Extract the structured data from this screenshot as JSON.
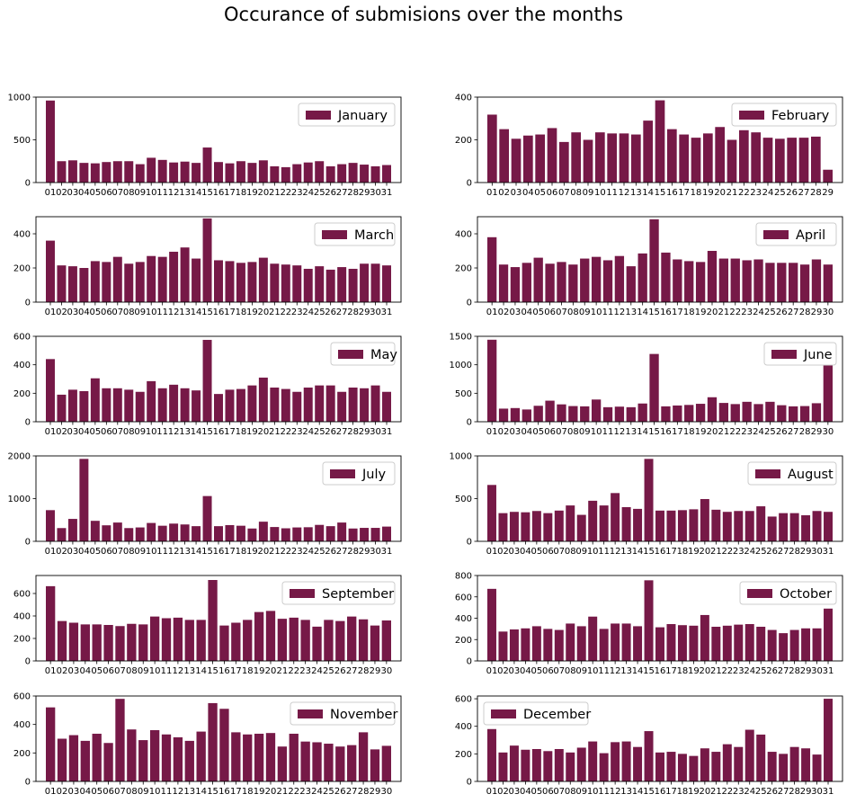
{
  "title": "Occurance of submisions over the months",
  "colors": {
    "bar": "#761947",
    "axis": "#000000"
  },
  "chart_data": [
    {
      "type": "bar",
      "name": "January",
      "legend_loc": "upper right",
      "ylim": [
        0,
        1000
      ],
      "yticks": [
        0,
        500,
        1000
      ],
      "categories": [
        "01",
        "02",
        "03",
        "04",
        "05",
        "06",
        "07",
        "08",
        "09",
        "10",
        "11",
        "12",
        "13",
        "14",
        "15",
        "16",
        "17",
        "18",
        "19",
        "20",
        "21",
        "22",
        "23",
        "24",
        "25",
        "26",
        "27",
        "28",
        "29",
        "30",
        "31"
      ],
      "values": [
        960,
        250,
        260,
        230,
        225,
        240,
        250,
        250,
        215,
        290,
        265,
        235,
        245,
        230,
        410,
        240,
        225,
        250,
        230,
        260,
        190,
        180,
        215,
        235,
        250,
        190,
        215,
        230,
        210,
        190,
        205
      ]
    },
    {
      "type": "bar",
      "name": "February",
      "legend_loc": "upper right",
      "ylim": [
        0,
        400
      ],
      "yticks": [
        0,
        200,
        400
      ],
      "categories": [
        "01",
        "02",
        "03",
        "04",
        "05",
        "06",
        "07",
        "08",
        "09",
        "10",
        "11",
        "12",
        "13",
        "14",
        "15",
        "16",
        "17",
        "18",
        "19",
        "20",
        "21",
        "22",
        "23",
        "24",
        "25",
        "26",
        "27",
        "28",
        "29"
      ],
      "values": [
        318,
        250,
        205,
        220,
        225,
        255,
        190,
        235,
        200,
        235,
        230,
        230,
        225,
        290,
        385,
        250,
        225,
        210,
        230,
        260,
        200,
        245,
        235,
        210,
        205,
        210,
        210,
        215,
        60
      ]
    },
    {
      "type": "bar",
      "name": "March",
      "legend_loc": "upper right",
      "ylim": [
        0,
        500
      ],
      "yticks": [
        0,
        200,
        400
      ],
      "categories": [
        "01",
        "02",
        "03",
        "04",
        "05",
        "06",
        "07",
        "08",
        "09",
        "10",
        "11",
        "12",
        "13",
        "14",
        "15",
        "16",
        "17",
        "18",
        "19",
        "20",
        "21",
        "22",
        "23",
        "24",
        "25",
        "26",
        "27",
        "28",
        "29",
        "30",
        "31"
      ],
      "values": [
        360,
        215,
        210,
        200,
        240,
        235,
        265,
        225,
        235,
        270,
        265,
        295,
        320,
        255,
        490,
        245,
        240,
        230,
        235,
        260,
        225,
        220,
        215,
        195,
        210,
        190,
        205,
        195,
        225,
        225,
        215
      ]
    },
    {
      "type": "bar",
      "name": "April",
      "legend_loc": "upper right",
      "ylim": [
        0,
        500
      ],
      "yticks": [
        0,
        200,
        400
      ],
      "categories": [
        "01",
        "02",
        "03",
        "04",
        "05",
        "06",
        "07",
        "08",
        "09",
        "10",
        "11",
        "12",
        "13",
        "14",
        "15",
        "16",
        "17",
        "18",
        "19",
        "20",
        "21",
        "22",
        "23",
        "24",
        "25",
        "26",
        "27",
        "28",
        "29",
        "30"
      ],
      "values": [
        380,
        220,
        205,
        230,
        260,
        225,
        235,
        220,
        255,
        265,
        245,
        270,
        210,
        285,
        485,
        290,
        250,
        240,
        235,
        300,
        255,
        255,
        245,
        250,
        230,
        230,
        230,
        220,
        250,
        220
      ]
    },
    {
      "type": "bar",
      "name": "May",
      "legend_loc": "upper right",
      "ylim": [
        0,
        600
      ],
      "yticks": [
        0,
        200,
        400,
        600
      ],
      "categories": [
        "01",
        "02",
        "03",
        "04",
        "05",
        "06",
        "07",
        "08",
        "09",
        "10",
        "11",
        "12",
        "13",
        "14",
        "15",
        "16",
        "17",
        "18",
        "19",
        "20",
        "21",
        "22",
        "23",
        "24",
        "25",
        "26",
        "27",
        "28",
        "29",
        "30",
        "31"
      ],
      "values": [
        440,
        190,
        225,
        215,
        305,
        235,
        235,
        225,
        210,
        285,
        235,
        260,
        235,
        220,
        575,
        195,
        225,
        230,
        255,
        310,
        240,
        230,
        210,
        240,
        255,
        255,
        210,
        240,
        235,
        255,
        210
      ]
    },
    {
      "type": "bar",
      "name": "June",
      "legend_loc": "upper right",
      "ylim": [
        0,
        1500
      ],
      "yticks": [
        0,
        500,
        1000,
        1500
      ],
      "categories": [
        "01",
        "02",
        "03",
        "04",
        "05",
        "06",
        "07",
        "08",
        "09",
        "10",
        "11",
        "12",
        "13",
        "14",
        "15",
        "16",
        "17",
        "18",
        "19",
        "20",
        "21",
        "22",
        "23",
        "24",
        "25",
        "26",
        "27",
        "28",
        "29",
        "30"
      ],
      "values": [
        1440,
        230,
        240,
        215,
        280,
        370,
        305,
        275,
        270,
        390,
        255,
        265,
        255,
        320,
        1190,
        270,
        285,
        295,
        315,
        430,
        330,
        310,
        350,
        310,
        350,
        290,
        270,
        275,
        325,
        1000
      ]
    },
    {
      "type": "bar",
      "name": "July",
      "legend_loc": "upper right",
      "ylim": [
        0,
        2000
      ],
      "yticks": [
        0,
        1000,
        2000
      ],
      "categories": [
        "01",
        "02",
        "03",
        "04",
        "05",
        "06",
        "07",
        "08",
        "09",
        "10",
        "11",
        "12",
        "13",
        "14",
        "15",
        "16",
        "17",
        "18",
        "19",
        "20",
        "21",
        "22",
        "23",
        "24",
        "25",
        "26",
        "27",
        "28",
        "29",
        "30",
        "31"
      ],
      "values": [
        730,
        310,
        525,
        1930,
        480,
        375,
        440,
        310,
        325,
        430,
        365,
        415,
        395,
        355,
        1060,
        355,
        380,
        365,
        300,
        460,
        335,
        305,
        325,
        330,
        385,
        355,
        440,
        300,
        315,
        315,
        345
      ]
    },
    {
      "type": "bar",
      "name": "August",
      "legend_loc": "upper right",
      "ylim": [
        0,
        1000
      ],
      "yticks": [
        0,
        500,
        1000
      ],
      "categories": [
        "01",
        "02",
        "03",
        "04",
        "05",
        "06",
        "07",
        "08",
        "09",
        "10",
        "11",
        "12",
        "13",
        "14",
        "15",
        "16",
        "17",
        "18",
        "19",
        "20",
        "21",
        "22",
        "23",
        "24",
        "25",
        "26",
        "27",
        "28",
        "29",
        "30",
        "31"
      ],
      "values": [
        660,
        330,
        345,
        340,
        355,
        330,
        360,
        420,
        310,
        475,
        420,
        565,
        400,
        380,
        965,
        360,
        360,
        365,
        375,
        495,
        370,
        345,
        355,
        355,
        410,
        290,
        330,
        330,
        305,
        355,
        345
      ]
    },
    {
      "type": "bar",
      "name": "September",
      "legend_loc": "upper right",
      "ylim": [
        0,
        760
      ],
      "yticks": [
        0,
        200,
        400,
        600
      ],
      "categories": [
        "01",
        "02",
        "03",
        "04",
        "05",
        "06",
        "07",
        "08",
        "09",
        "10",
        "11",
        "12",
        "13",
        "14",
        "15",
        "16",
        "17",
        "18",
        "19",
        "20",
        "21",
        "22",
        "23",
        "24",
        "25",
        "26",
        "27",
        "28",
        "29",
        "30"
      ],
      "values": [
        665,
        355,
        340,
        325,
        325,
        320,
        310,
        330,
        325,
        395,
        380,
        385,
        365,
        365,
        720,
        315,
        340,
        365,
        435,
        445,
        375,
        385,
        365,
        305,
        365,
        355,
        395,
        370,
        315,
        360
      ]
    },
    {
      "type": "bar",
      "name": "October",
      "legend_loc": "upper right",
      "ylim": [
        0,
        800
      ],
      "yticks": [
        0,
        200,
        400,
        600,
        800
      ],
      "categories": [
        "01",
        "02",
        "03",
        "04",
        "05",
        "06",
        "07",
        "08",
        "09",
        "10",
        "11",
        "12",
        "13",
        "14",
        "15",
        "16",
        "17",
        "18",
        "19",
        "20",
        "21",
        "22",
        "23",
        "24",
        "25",
        "26",
        "27",
        "28",
        "29",
        "30",
        "31"
      ],
      "values": [
        675,
        275,
        295,
        305,
        325,
        300,
        290,
        350,
        325,
        415,
        300,
        350,
        350,
        325,
        755,
        315,
        345,
        335,
        330,
        430,
        320,
        330,
        340,
        345,
        320,
        290,
        260,
        290,
        305,
        305,
        490
      ]
    },
    {
      "type": "bar",
      "name": "November",
      "legend_loc": "upper right",
      "ylim": [
        0,
        600
      ],
      "yticks": [
        0,
        200,
        400,
        600
      ],
      "categories": [
        "01",
        "02",
        "03",
        "04",
        "05",
        "06",
        "07",
        "08",
        "09",
        "10",
        "11",
        "12",
        "13",
        "14",
        "15",
        "16",
        "17",
        "18",
        "19",
        "20",
        "21",
        "22",
        "23",
        "24",
        "25",
        "26",
        "27",
        "28",
        "29",
        "30"
      ],
      "values": [
        520,
        300,
        325,
        285,
        335,
        270,
        580,
        365,
        290,
        360,
        330,
        310,
        285,
        350,
        550,
        510,
        345,
        330,
        335,
        340,
        245,
        335,
        280,
        275,
        265,
        245,
        255,
        345,
        225,
        250
      ]
    },
    {
      "type": "bar",
      "name": "December",
      "legend_loc": "upper left",
      "ylim": [
        0,
        620
      ],
      "yticks": [
        0,
        200,
        400,
        600
      ],
      "categories": [
        "01",
        "02",
        "03",
        "04",
        "05",
        "06",
        "07",
        "08",
        "09",
        "10",
        "11",
        "12",
        "13",
        "14",
        "15",
        "16",
        "17",
        "18",
        "19",
        "20",
        "21",
        "22",
        "23",
        "24",
        "25",
        "26",
        "27",
        "28",
        "29",
        "30",
        "31"
      ],
      "values": [
        380,
        210,
        260,
        230,
        235,
        220,
        235,
        210,
        245,
        290,
        205,
        285,
        290,
        250,
        365,
        210,
        215,
        200,
        185,
        240,
        215,
        270,
        250,
        375,
        340,
        215,
        200,
        250,
        240,
        195,
        600
      ]
    }
  ]
}
